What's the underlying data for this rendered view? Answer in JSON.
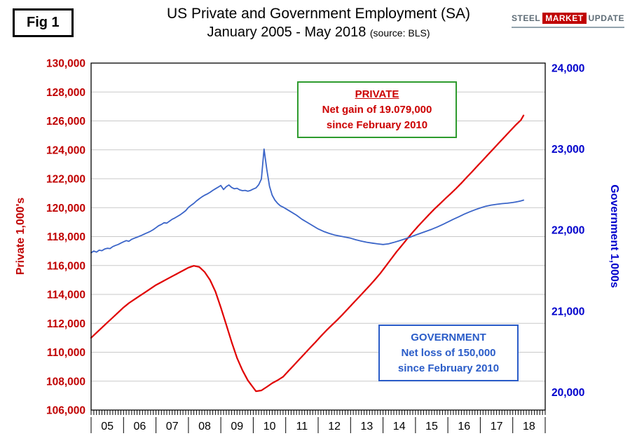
{
  "figure": {
    "label": "Fig 1"
  },
  "logo": {
    "word1": "STEEL",
    "word2": "MARKET",
    "word3": "UPDATE",
    "accent": "#c00000",
    "gray": "#5e6c76"
  },
  "chart_data": {
    "type": "line",
    "title": "US Private and Government Employment (SA)",
    "subtitle": "January 2005 - May 2018",
    "source": "(source: BLS)",
    "grid": "horizontal",
    "legend_position": "none",
    "x_axis": {
      "range": [
        2005,
        2019
      ],
      "year_labels": [
        "05",
        "06",
        "07",
        "08",
        "09",
        "10",
        "11",
        "12",
        "13",
        "14",
        "15",
        "16",
        "17",
        "18"
      ],
      "minor_ticks": "monthly"
    },
    "y_left": {
      "label": "Private 1,000's",
      "color": "#c00000",
      "range": [
        106000,
        130000
      ],
      "tick_step": 2000,
      "ticks": [
        130000,
        128000,
        126000,
        124000,
        122000,
        120000,
        118000,
        116000,
        114000,
        112000,
        110000,
        108000,
        106000
      ],
      "tick_labels": [
        "130,000",
        "128,000",
        "126,000",
        "124,000",
        "122,000",
        "120,000",
        "118,000",
        "116,000",
        "114,000",
        "112,000",
        "110,000",
        "108,000",
        "106,000"
      ]
    },
    "y_right": {
      "label": "Government 1,000s",
      "color": "#0000cc",
      "range": [
        20000,
        24000
      ],
      "tick_step": 1000,
      "ticks": [
        24000,
        23000,
        22000,
        21000,
        20000
      ],
      "tick_labels": [
        "24,000",
        "23,000",
        "22,000",
        "21,000",
        "20,000"
      ]
    },
    "annotations": {
      "private": {
        "title": "PRIVATE",
        "line1": "Net gain of 19.079,000",
        "line2": "since February 2010",
        "border_color": "#2e9b2e",
        "text_color": "#cc0000"
      },
      "government": {
        "title": "GOVERNMENT",
        "line1": "Net loss of 150,000",
        "line2": "since February 2010",
        "border_color": "#2a5cc8",
        "text_color": "#2a5cc8"
      }
    },
    "series": [
      {
        "name": "Private",
        "axis": "left",
        "color": "#e00000",
        "width": 2.2,
        "points": [
          [
            2005.0,
            111000
          ],
          [
            2005.167,
            111350
          ],
          [
            2005.333,
            111700
          ],
          [
            2005.5,
            112050
          ],
          [
            2005.667,
            112400
          ],
          [
            2005.833,
            112750
          ],
          [
            2006.0,
            113100
          ],
          [
            2006.167,
            113400
          ],
          [
            2006.333,
            113650
          ],
          [
            2006.5,
            113900
          ],
          [
            2006.667,
            114150
          ],
          [
            2006.833,
            114400
          ],
          [
            2007.0,
            114650
          ],
          [
            2007.167,
            114850
          ],
          [
            2007.333,
            115050
          ],
          [
            2007.5,
            115250
          ],
          [
            2007.667,
            115450
          ],
          [
            2007.833,
            115650
          ],
          [
            2008.0,
            115850
          ],
          [
            2008.167,
            115980
          ],
          [
            2008.333,
            115900
          ],
          [
            2008.5,
            115550
          ],
          [
            2008.667,
            115000
          ],
          [
            2008.833,
            114200
          ],
          [
            2009.0,
            113100
          ],
          [
            2009.167,
            111900
          ],
          [
            2009.333,
            110700
          ],
          [
            2009.5,
            109600
          ],
          [
            2009.667,
            108750
          ],
          [
            2009.833,
            108050
          ],
          [
            2010.0,
            107550
          ],
          [
            2010.083,
            107300
          ],
          [
            2010.25,
            107360
          ],
          [
            2010.417,
            107600
          ],
          [
            2010.583,
            107860
          ],
          [
            2010.75,
            108060
          ],
          [
            2010.917,
            108300
          ],
          [
            2011.083,
            108700
          ],
          [
            2011.25,
            109100
          ],
          [
            2011.417,
            109500
          ],
          [
            2011.583,
            109900
          ],
          [
            2011.75,
            110300
          ],
          [
            2011.917,
            110700
          ],
          [
            2012.083,
            111100
          ],
          [
            2012.25,
            111500
          ],
          [
            2012.417,
            111860
          ],
          [
            2012.583,
            112220
          ],
          [
            2012.75,
            112600
          ],
          [
            2012.917,
            113000
          ],
          [
            2013.083,
            113400
          ],
          [
            2013.25,
            113800
          ],
          [
            2013.417,
            114200
          ],
          [
            2013.583,
            114600
          ],
          [
            2013.75,
            115020
          ],
          [
            2013.917,
            115460
          ],
          [
            2014.083,
            115950
          ],
          [
            2014.25,
            116450
          ],
          [
            2014.417,
            116950
          ],
          [
            2014.583,
            117400
          ],
          [
            2014.75,
            117860
          ],
          [
            2014.917,
            118300
          ],
          [
            2015.083,
            118720
          ],
          [
            2015.25,
            119120
          ],
          [
            2015.417,
            119520
          ],
          [
            2015.583,
            119900
          ],
          [
            2015.75,
            120260
          ],
          [
            2015.917,
            120620
          ],
          [
            2016.083,
            120960
          ],
          [
            2016.25,
            121320
          ],
          [
            2016.417,
            121700
          ],
          [
            2016.583,
            122100
          ],
          [
            2016.75,
            122500
          ],
          [
            2016.917,
            122900
          ],
          [
            2017.083,
            123300
          ],
          [
            2017.25,
            123700
          ],
          [
            2017.417,
            124100
          ],
          [
            2017.583,
            124500
          ],
          [
            2017.75,
            124900
          ],
          [
            2017.917,
            125300
          ],
          [
            2018.083,
            125700
          ],
          [
            2018.25,
            126060
          ],
          [
            2018.333,
            126379
          ]
        ]
      },
      {
        "name": "Government",
        "axis": "right",
        "color": "#3a64c8",
        "width": 1.8,
        "points": [
          [
            2005.0,
            21720
          ],
          [
            2005.083,
            21742
          ],
          [
            2005.167,
            21728
          ],
          [
            2005.25,
            21752
          ],
          [
            2005.333,
            21746
          ],
          [
            2005.417,
            21766
          ],
          [
            2005.5,
            21776
          ],
          [
            2005.583,
            21772
          ],
          [
            2005.667,
            21796
          ],
          [
            2005.75,
            21810
          ],
          [
            2005.833,
            21822
          ],
          [
            2005.917,
            21840
          ],
          [
            2006.0,
            21856
          ],
          [
            2006.083,
            21870
          ],
          [
            2006.167,
            21862
          ],
          [
            2006.25,
            21886
          ],
          [
            2006.333,
            21900
          ],
          [
            2006.417,
            21912
          ],
          [
            2006.5,
            21926
          ],
          [
            2006.583,
            21940
          ],
          [
            2006.667,
            21956
          ],
          [
            2006.75,
            21970
          ],
          [
            2006.833,
            21986
          ],
          [
            2006.917,
            22006
          ],
          [
            2007.0,
            22030
          ],
          [
            2007.083,
            22054
          ],
          [
            2007.167,
            22070
          ],
          [
            2007.25,
            22090
          ],
          [
            2007.333,
            22086
          ],
          [
            2007.417,
            22110
          ],
          [
            2007.5,
            22134
          ],
          [
            2007.583,
            22150
          ],
          [
            2007.667,
            22170
          ],
          [
            2007.75,
            22190
          ],
          [
            2007.833,
            22214
          ],
          [
            2007.917,
            22240
          ],
          [
            2008.0,
            22280
          ],
          [
            2008.083,
            22306
          ],
          [
            2008.167,
            22330
          ],
          [
            2008.25,
            22360
          ],
          [
            2008.333,
            22386
          ],
          [
            2008.417,
            22410
          ],
          [
            2008.5,
            22430
          ],
          [
            2008.583,
            22446
          ],
          [
            2008.667,
            22466
          ],
          [
            2008.75,
            22490
          ],
          [
            2008.833,
            22510
          ],
          [
            2008.917,
            22530
          ],
          [
            2009.0,
            22550
          ],
          [
            2009.083,
            22500
          ],
          [
            2009.167,
            22536
          ],
          [
            2009.25,
            22556
          ],
          [
            2009.333,
            22526
          ],
          [
            2009.417,
            22510
          ],
          [
            2009.5,
            22516
          ],
          [
            2009.583,
            22496
          ],
          [
            2009.667,
            22486
          ],
          [
            2009.75,
            22490
          ],
          [
            2009.833,
            22480
          ],
          [
            2009.917,
            22490
          ],
          [
            2010.0,
            22506
          ],
          [
            2010.083,
            22520
          ],
          [
            2010.167,
            22560
          ],
          [
            2010.25,
            22630
          ],
          [
            2010.333,
            23000
          ],
          [
            2010.417,
            22750
          ],
          [
            2010.5,
            22540
          ],
          [
            2010.583,
            22430
          ],
          [
            2010.667,
            22370
          ],
          [
            2010.75,
            22330
          ],
          [
            2010.833,
            22300
          ],
          [
            2010.917,
            22284
          ],
          [
            2011.0,
            22264
          ],
          [
            2011.167,
            22224
          ],
          [
            2011.333,
            22184
          ],
          [
            2011.5,
            22134
          ],
          [
            2011.667,
            22094
          ],
          [
            2011.833,
            22054
          ],
          [
            2012.0,
            22014
          ],
          [
            2012.167,
            21984
          ],
          [
            2012.333,
            21960
          ],
          [
            2012.5,
            21940
          ],
          [
            2012.667,
            21926
          ],
          [
            2012.833,
            21914
          ],
          [
            2013.0,
            21900
          ],
          [
            2013.167,
            21880
          ],
          [
            2013.333,
            21864
          ],
          [
            2013.5,
            21850
          ],
          [
            2013.667,
            21840
          ],
          [
            2013.833,
            21830
          ],
          [
            2014.0,
            21822
          ],
          [
            2014.167,
            21830
          ],
          [
            2014.333,
            21848
          ],
          [
            2014.5,
            21868
          ],
          [
            2014.667,
            21890
          ],
          [
            2014.833,
            21912
          ],
          [
            2015.0,
            21938
          ],
          [
            2015.167,
            21962
          ],
          [
            2015.333,
            21986
          ],
          [
            2015.5,
            22010
          ],
          [
            2015.667,
            22038
          ],
          [
            2015.833,
            22068
          ],
          [
            2016.0,
            22100
          ],
          [
            2016.167,
            22134
          ],
          [
            2016.333,
            22164
          ],
          [
            2016.5,
            22196
          ],
          [
            2016.667,
            22224
          ],
          [
            2016.833,
            22250
          ],
          [
            2017.0,
            22274
          ],
          [
            2017.167,
            22294
          ],
          [
            2017.333,
            22308
          ],
          [
            2017.5,
            22318
          ],
          [
            2017.667,
            22326
          ],
          [
            2017.833,
            22332
          ],
          [
            2018.0,
            22340
          ],
          [
            2018.083,
            22346
          ],
          [
            2018.167,
            22352
          ],
          [
            2018.25,
            22360
          ],
          [
            2018.333,
            22370
          ]
        ]
      }
    ]
  }
}
